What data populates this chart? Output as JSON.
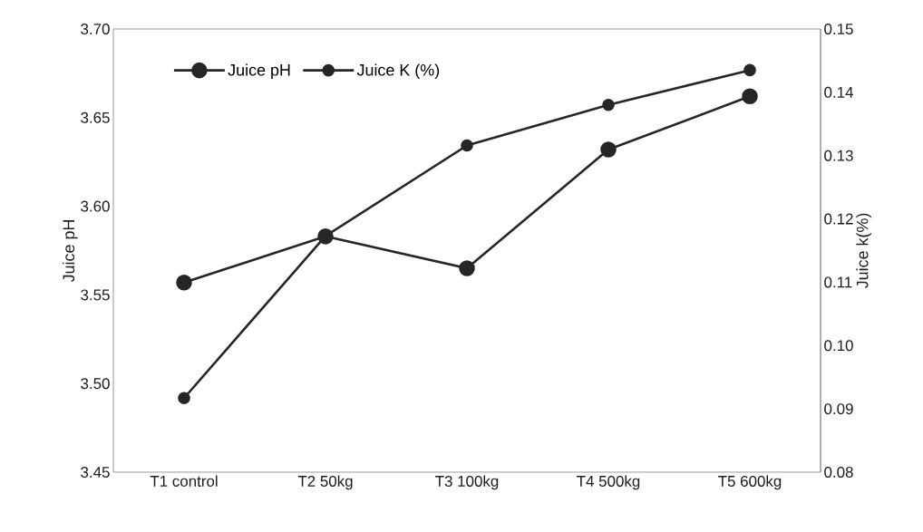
{
  "chart_data": {
    "type": "line",
    "categories": [
      "T1 control",
      "T2 50kg",
      "T3 100kg",
      "T4 500kg",
      "T5 600kg"
    ],
    "series": [
      {
        "name": "Juice pH",
        "color": "#262626",
        "values": [
          3.557,
          3.583,
          3.565,
          3.632,
          3.662
        ]
      },
      {
        "name": "Juice K (%)",
        "color": "#262626",
        "axis": "y2",
        "values": [
          0.0917,
          0.1173,
          0.1316,
          0.138,
          0.1435
        ]
      }
    ],
    "ylabel": "Juice pH",
    "y2label": "Juice k(%)",
    "ylim": [
      3.45,
      3.7
    ],
    "yticks": [
      {
        "value": 3.45,
        "label": "3.45"
      },
      {
        "value": 3.5,
        "label": "3.50"
      },
      {
        "value": 3.55,
        "label": "3.55"
      },
      {
        "value": 3.6,
        "label": "3.60"
      },
      {
        "value": 3.65,
        "label": "3.65"
      },
      {
        "value": 3.7,
        "label": "3.70"
      }
    ],
    "y2lim": [
      0.08,
      0.15
    ],
    "y2ticks": [
      {
        "value": 0.08,
        "label": "0.08"
      },
      {
        "value": 0.09,
        "label": "0.09"
      },
      {
        "value": 0.1,
        "label": "0.10"
      },
      {
        "value": 0.11,
        "label": "0.11"
      },
      {
        "value": 0.12,
        "label": "0.12"
      },
      {
        "value": 0.13,
        "label": "0.13"
      },
      {
        "value": 0.14,
        "label": "0.14"
      },
      {
        "value": 0.15,
        "label": "0.15"
      }
    ],
    "legend": "top left",
    "grid": false,
    "marker": "circle",
    "line_style": "solid"
  }
}
